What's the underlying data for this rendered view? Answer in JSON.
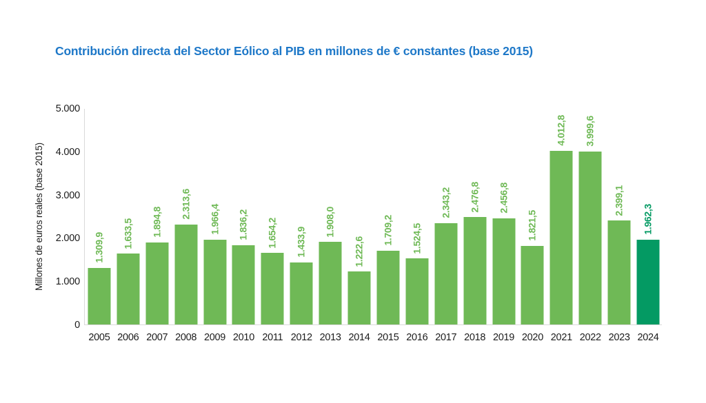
{
  "title": "Contribución directa del Sector Eólico al PIB en millones de € constantes (base 2015)",
  "colors": {
    "title_text": "#1e78c8",
    "bar": "#6fb956",
    "bar_highlight": "#049a63",
    "axis_line": "#d9d9d9",
    "tick_text": "#1c1c1c"
  },
  "chart_data": {
    "type": "bar",
    "title": "Contribución directa del Sector Eólico al PIB en millones de € constantes (base 2015)",
    "xlabel": "",
    "ylabel": "Millones de euros reales (base 2015)",
    "ylim": [
      0,
      5000
    ],
    "yticks": [
      0,
      1000,
      2000,
      3000,
      4000,
      5000
    ],
    "ytick_labels": [
      "0",
      "1.000",
      "2.000",
      "3.000",
      "4.000",
      "5.000"
    ],
    "grid": false,
    "legend": false,
    "categories": [
      "2005",
      "2006",
      "2007",
      "2008",
      "2009",
      "2010",
      "2011",
      "2012",
      "2013",
      "2014",
      "2015",
      "2016",
      "2017",
      "2018",
      "2019",
      "2020",
      "2021",
      "2022",
      "2023",
      "2024"
    ],
    "values": [
      1309.9,
      1633.5,
      1894.8,
      2313.6,
      1966.4,
      1836.2,
      1654.2,
      1433.9,
      1908.0,
      1222.6,
      1709.2,
      1524.5,
      2343.2,
      2476.8,
      2456.8,
      1821.5,
      4012.8,
      3999.6,
      2399.1,
      1962.3
    ],
    "value_labels": [
      "1.309,9",
      "1.633,5",
      "1.894,8",
      "2.313,6",
      "1.966,4",
      "1.836,2",
      "1.654,2",
      "1.433,9",
      "1.908,0",
      "1.222,6",
      "1.709,2",
      "1.524,5",
      "2.343,2",
      "2.476,8",
      "2.456,8",
      "1.821,5",
      "4.012,8",
      "3.999,6",
      "2.399,1",
      "1.962,3"
    ],
    "bar_color": "#6fb956",
    "highlight_color": "#049a63",
    "highlight_index": 19
  }
}
